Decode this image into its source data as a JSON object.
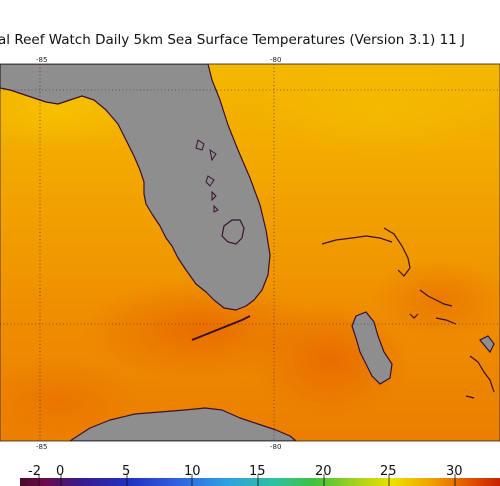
{
  "title": "al Reef Watch Daily 5km Sea Surface Temperatures (Version 3.1)   11 J",
  "grid": {
    "top_ticks": [
      "-85",
      "-80"
    ],
    "bottom_ticks": [
      "-85",
      "-80"
    ]
  },
  "colorbar": {
    "labels": [
      "-2",
      "0",
      "5",
      "10",
      "15",
      "20",
      "25",
      "30"
    ]
  },
  "colors": {
    "land": "#8f8f8f",
    "coast": "#3a1030",
    "water_base": "#f2a400",
    "water_warm": "#ec7a00"
  }
}
